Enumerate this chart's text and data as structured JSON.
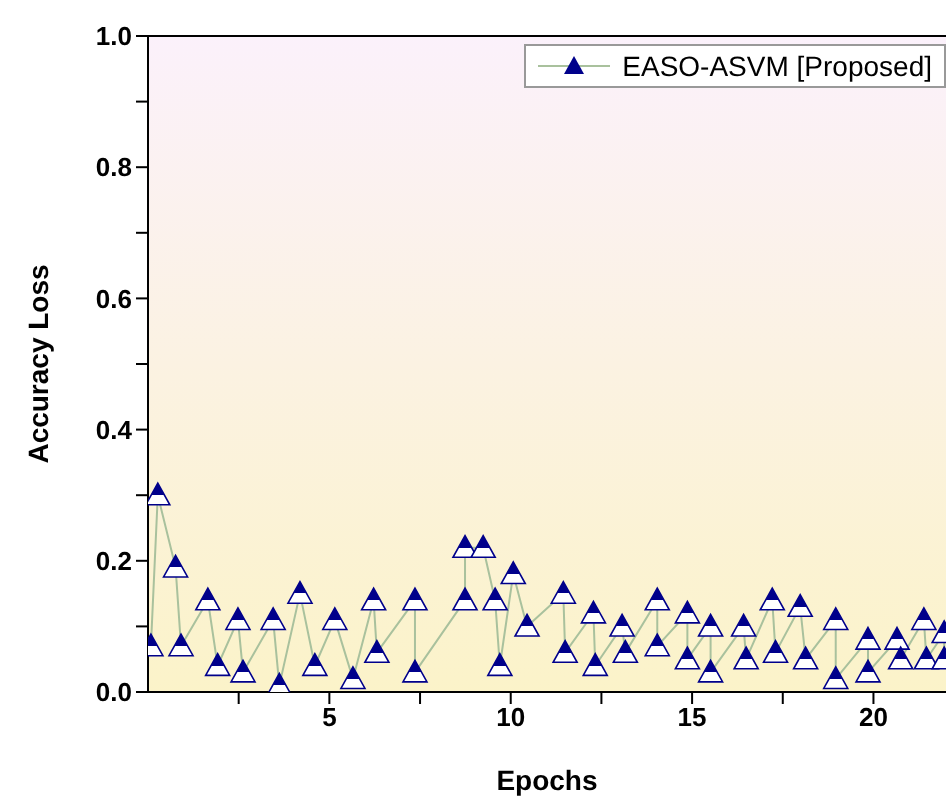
{
  "chart_data": {
    "type": "line",
    "xlabel": "Epochs",
    "ylabel": "Accuracy Loss",
    "xlim": [
      0,
      22
    ],
    "ylim": [
      0,
      1
    ],
    "xticks": [
      {
        "value": 2.5,
        "label": null
      },
      5,
      {
        "value": 7.5,
        "label": null
      },
      10,
      {
        "value": 12.5,
        "label": null
      },
      15,
      {
        "value": 17.5,
        "label": null
      },
      20
    ],
    "yticks": [
      {
        "value": 0,
        "label": "0.0"
      },
      {
        "value": 0.1,
        "label": null
      },
      {
        "value": 0.2,
        "label": "0.2"
      },
      {
        "value": 0.3,
        "label": null
      },
      {
        "value": 0.4,
        "label": "0.4"
      },
      {
        "value": 0.5,
        "label": null
      },
      {
        "value": 0.6,
        "label": "0.6"
      },
      {
        "value": 0.7,
        "label": null
      },
      {
        "value": 0.8,
        "label": "0.8"
      },
      {
        "value": 0.9,
        "label": null
      },
      {
        "value": 1,
        "label": "1.0"
      }
    ],
    "legend": "top right",
    "marker": "triangle",
    "line_style": "solid",
    "grid": false,
    "series": [
      {
        "name": "EASO-ASVM [Proposed]",
        "color": "#00008b",
        "x": [
          0.08,
          0.27,
          0.76,
          0.91,
          1.65,
          1.92,
          2.48,
          2.62,
          3.45,
          3.62,
          4.19,
          4.6,
          5.15,
          5.65,
          6.22,
          6.31,
          7.36,
          7.36,
          8.74,
          8.74,
          9.24,
          9.57,
          9.7,
          10.07,
          10.45,
          11.45,
          11.5,
          12.28,
          12.33,
          13.07,
          13.16,
          14.04,
          14.04,
          14.87,
          14.87,
          15.51,
          15.51,
          16.42,
          16.49,
          17.21,
          17.3,
          17.98,
          18.13,
          18.96,
          18.96,
          19.85,
          19.85,
          20.65,
          20.75,
          21.39,
          21.46,
          21.95,
          21.95
        ],
        "values": [
          0.07,
          0.3,
          0.19,
          0.07,
          0.14,
          0.04,
          0.11,
          0.03,
          0.11,
          0.01,
          0.15,
          0.04,
          0.11,
          0.02,
          0.14,
          0.06,
          0.14,
          0.03,
          0.14,
          0.22,
          0.22,
          0.14,
          0.04,
          0.18,
          0.1,
          0.15,
          0.06,
          0.12,
          0.04,
          0.1,
          0.06,
          0.14,
          0.07,
          0.12,
          0.05,
          0.1,
          0.03,
          0.1,
          0.05,
          0.14,
          0.06,
          0.13,
          0.05,
          0.11,
          0.02,
          0.08,
          0.03,
          0.08,
          0.05,
          0.11,
          0.05,
          0.09,
          0.05
        ]
      }
    ]
  }
}
